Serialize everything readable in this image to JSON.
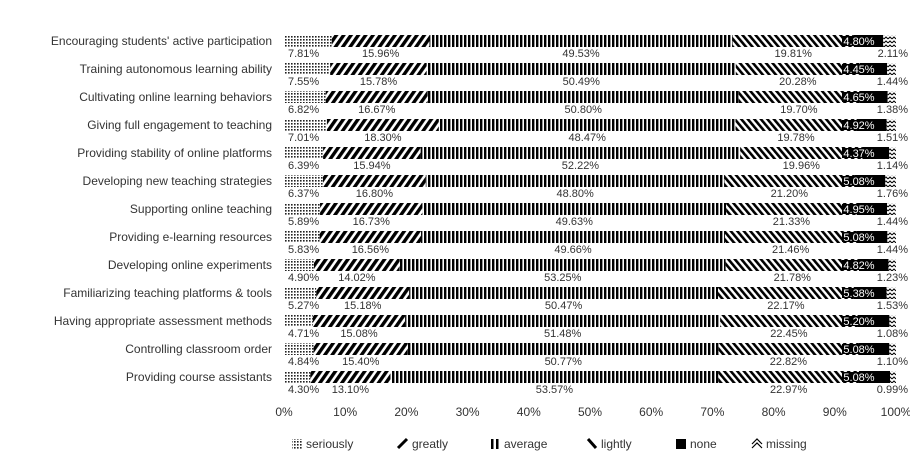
{
  "chart_data": {
    "type": "bar",
    "orientation": "horizontal",
    "stacked": true,
    "categories": [
      "Encouraging students' active participation",
      "Training autonomous learning ability",
      "Cultivating online learning behaviors",
      "Giving full engagement to teaching",
      "Providing stability of online platforms",
      "Developing new teaching strategies",
      "Supporting  online teaching",
      "Providing e-learning resources",
      "Developing online experiments",
      "Familiarizing teaching platforms & tools",
      "Having appropriate assessment methods",
      "Controlling classroom order",
      "Providing course assistants"
    ],
    "series": [
      {
        "name": "seriously",
        "values": [
          7.81,
          7.55,
          6.82,
          7.01,
          6.39,
          6.37,
          5.89,
          5.83,
          4.9,
          5.27,
          4.71,
          4.84,
          4.3
        ],
        "labels": [
          "7.81%",
          "7.55%",
          "6.82%",
          "7.01%",
          "6.39%",
          "6.37%",
          "5.89%",
          "5.83%",
          "4.90%",
          "5.27%",
          "4.71%",
          "4.84%",
          "4.30%"
        ]
      },
      {
        "name": "greatly",
        "values": [
          15.96,
          15.78,
          16.67,
          18.3,
          15.94,
          16.8,
          16.73,
          16.56,
          14.02,
          15.18,
          15.08,
          15.4,
          13.1
        ],
        "labels": [
          "15.96%",
          "15.78%",
          "16.67%",
          "18.30%",
          "15.94%",
          "16.80%",
          "16.73%",
          "16.56%",
          "14.02%",
          "15.18%",
          "15.08%",
          "15.40%",
          "13.10%"
        ]
      },
      {
        "name": "average",
        "values": [
          49.53,
          50.49,
          50.8,
          48.47,
          52.22,
          48.8,
          49.63,
          49.66,
          53.25,
          50.47,
          51.48,
          50.77,
          53.57
        ],
        "labels": [
          "49.53%",
          "50.49%",
          "50.80%",
          "48.47%",
          "52.22%",
          "48.80%",
          "49.63%",
          "49.66%",
          "53.25%",
          "50.47%",
          "51.48%",
          "50.77%",
          "53.57%"
        ]
      },
      {
        "name": "lightly",
        "values": [
          19.81,
          20.28,
          19.7,
          19.78,
          19.96,
          21.2,
          21.33,
          21.46,
          21.78,
          22.17,
          22.45,
          22.82,
          22.97
        ],
        "labels": [
          "19.81%",
          "20.28%",
          "19.70%",
          "19.78%",
          "19.96%",
          "21.20%",
          "21.33%",
          "21.46%",
          "21.78%",
          "22.17%",
          "22.45%",
          "22.82%",
          "22.97%"
        ]
      },
      {
        "name": "none",
        "values": [
          4.8,
          4.45,
          4.65,
          4.92,
          4.37,
          5.08,
          4.95,
          5.08,
          4.82,
          5.38,
          5.2,
          5.08,
          5.08
        ],
        "labels": [
          "4.80%",
          "4.45%",
          "4.65%",
          "4.92%",
          "4.37%",
          "5.08%",
          "4.95%",
          "5.08%",
          "4.82%",
          "5.38%",
          "5.20%",
          "5.08%",
          "5.08%"
        ]
      },
      {
        "name": "missing",
        "values": [
          2.11,
          1.44,
          1.38,
          1.51,
          1.14,
          1.76,
          1.44,
          1.44,
          1.23,
          1.53,
          1.08,
          1.1,
          0.99
        ],
        "labels": [
          "2.11%",
          "1.44%",
          "1.38%",
          "1.51%",
          "1.14%",
          "1.76%",
          "1.44%",
          "1.44%",
          "1.23%",
          "1.53%",
          "1.08%",
          "1.10%",
          "0.99%"
        ]
      }
    ],
    "xticks": [
      "0%",
      "10%",
      "20%",
      "30%",
      "40%",
      "50%",
      "60%",
      "70%",
      "80%",
      "90%",
      "100%"
    ],
    "xlim": [
      0,
      100
    ],
    "grid": false,
    "legend_position": "bottom",
    "legend": [
      {
        "label": "seriously",
        "icon": "dotted-square-icon"
      },
      {
        "label": "greatly",
        "icon": "slash-icon"
      },
      {
        "label": "average",
        "icon": "double-bar-icon"
      },
      {
        "label": "lightly",
        "icon": "diagonal-stroke-icon"
      },
      {
        "label": "none",
        "icon": "solid-square-icon"
      },
      {
        "label": "missing",
        "icon": "double-chevron-icon"
      }
    ],
    "text_color": "#333333",
    "bar_color": "#000000"
  }
}
